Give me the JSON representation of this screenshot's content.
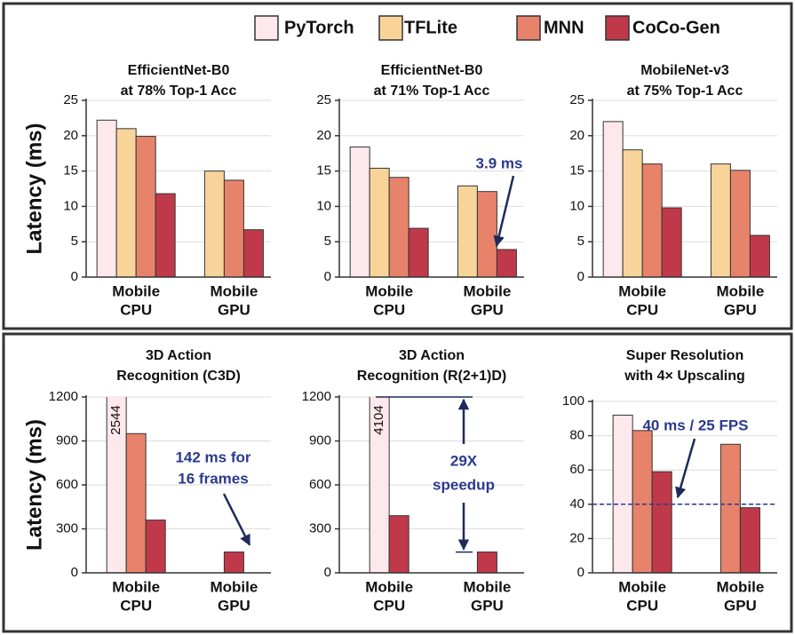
{
  "series": [
    {
      "name": "PyTorch",
      "color": "#fde8ec"
    },
    {
      "name": "TFLite",
      "color": "#f9d49a"
    },
    {
      "name": "MNN",
      "color": "#e8836b"
    },
    {
      "name": "CoCo-Gen",
      "color": "#c0394a"
    }
  ],
  "chart_data": [
    {
      "type": "bar",
      "title": [
        "EfficientNet-B0",
        "at 78% Top-1 Acc"
      ],
      "ylabel": "Latency (ms)",
      "categories": [
        [
          "Mobile",
          "CPU"
        ],
        [
          "Mobile",
          "GPU"
        ]
      ],
      "series": [
        {
          "values": [
            22.2,
            null
          ]
        },
        {
          "values": [
            21,
            15
          ]
        },
        {
          "values": [
            19.9,
            13.7
          ]
        },
        {
          "values": [
            11.8,
            6.7
          ]
        }
      ],
      "ylim": [
        0,
        25
      ],
      "yticks": [
        0,
        5,
        10,
        15,
        20,
        25
      ],
      "grid": true
    },
    {
      "type": "bar",
      "title": [
        "EfficientNet-B0",
        "at 71% Top-1 Acc"
      ],
      "categories": [
        [
          "Mobile",
          "CPU"
        ],
        [
          "Mobile",
          "GPU"
        ]
      ],
      "series": [
        {
          "values": [
            18.4,
            null
          ]
        },
        {
          "values": [
            15.4,
            12.9
          ]
        },
        {
          "values": [
            14.1,
            12.1
          ]
        },
        {
          "values": [
            6.9,
            3.9
          ]
        }
      ],
      "ylim": [
        0,
        25
      ],
      "yticks": [
        0,
        5,
        10,
        15,
        20,
        25
      ],
      "grid": true,
      "annotation": [
        "3.9 ms"
      ]
    },
    {
      "type": "bar",
      "title": [
        "MobileNet-v3",
        "at 75% Top-1 Acc"
      ],
      "categories": [
        [
          "Mobile",
          "CPU"
        ],
        [
          "Mobile",
          "GPU"
        ]
      ],
      "series": [
        {
          "values": [
            22,
            null
          ]
        },
        {
          "values": [
            18,
            16
          ]
        },
        {
          "values": [
            16,
            15.1
          ]
        },
        {
          "values": [
            9.8,
            5.9
          ]
        }
      ],
      "ylim": [
        0,
        25
      ],
      "yticks": [
        0,
        5,
        10,
        15,
        20,
        25
      ],
      "grid": true
    },
    {
      "type": "bar",
      "title": [
        "3D Action",
        "Recognition (C3D)"
      ],
      "ylabel": "Latency (ms)",
      "categories": [
        [
          "Mobile",
          "CPU"
        ],
        [
          "Mobile",
          "GPU"
        ]
      ],
      "series": [
        {
          "values": [
            2544,
            null
          ],
          "value_labels": [
            "2544",
            null
          ]
        },
        {
          "values": [
            null,
            null
          ]
        },
        {
          "values": [
            950,
            null
          ]
        },
        {
          "values": [
            360,
            142
          ]
        }
      ],
      "ylim": [
        0,
        1200
      ],
      "yticks": [
        0,
        300,
        600,
        900,
        1200
      ],
      "grid": true,
      "annotation": [
        "142 ms for",
        "16 frames"
      ]
    },
    {
      "type": "bar",
      "title": [
        "3D Action",
        "Recognition (R(2+1)D)"
      ],
      "categories": [
        [
          "Mobile",
          "CPU"
        ],
        [
          "Mobile",
          "GPU"
        ]
      ],
      "series": [
        {
          "values": [
            4104,
            null
          ],
          "value_labels": [
            "4104",
            null
          ]
        },
        {
          "values": [
            null,
            null
          ]
        },
        {
          "values": [
            null,
            null
          ]
        },
        {
          "values": [
            390,
            142
          ]
        }
      ],
      "ylim": [
        0,
        1200
      ],
      "yticks": [
        0,
        300,
        600,
        900,
        1200
      ],
      "grid": true,
      "annotation": [
        "29X",
        "speedup"
      ]
    },
    {
      "type": "bar",
      "title": [
        "Super Resolution",
        "with 4× Upscaling"
      ],
      "categories": [
        [
          "Mobile",
          "CPU"
        ],
        [
          "Mobile",
          "GPU"
        ]
      ],
      "series": [
        {
          "values": [
            92,
            null
          ]
        },
        {
          "values": [
            null,
            null
          ]
        },
        {
          "values": [
            83,
            75
          ]
        },
        {
          "values": [
            59,
            38
          ]
        }
      ],
      "ylim": [
        0,
        100
      ],
      "yticks": [
        0,
        20,
        40,
        60,
        80,
        100
      ],
      "grid": true,
      "hline": 40,
      "annotation": [
        "40 ms / 25 FPS"
      ]
    }
  ]
}
